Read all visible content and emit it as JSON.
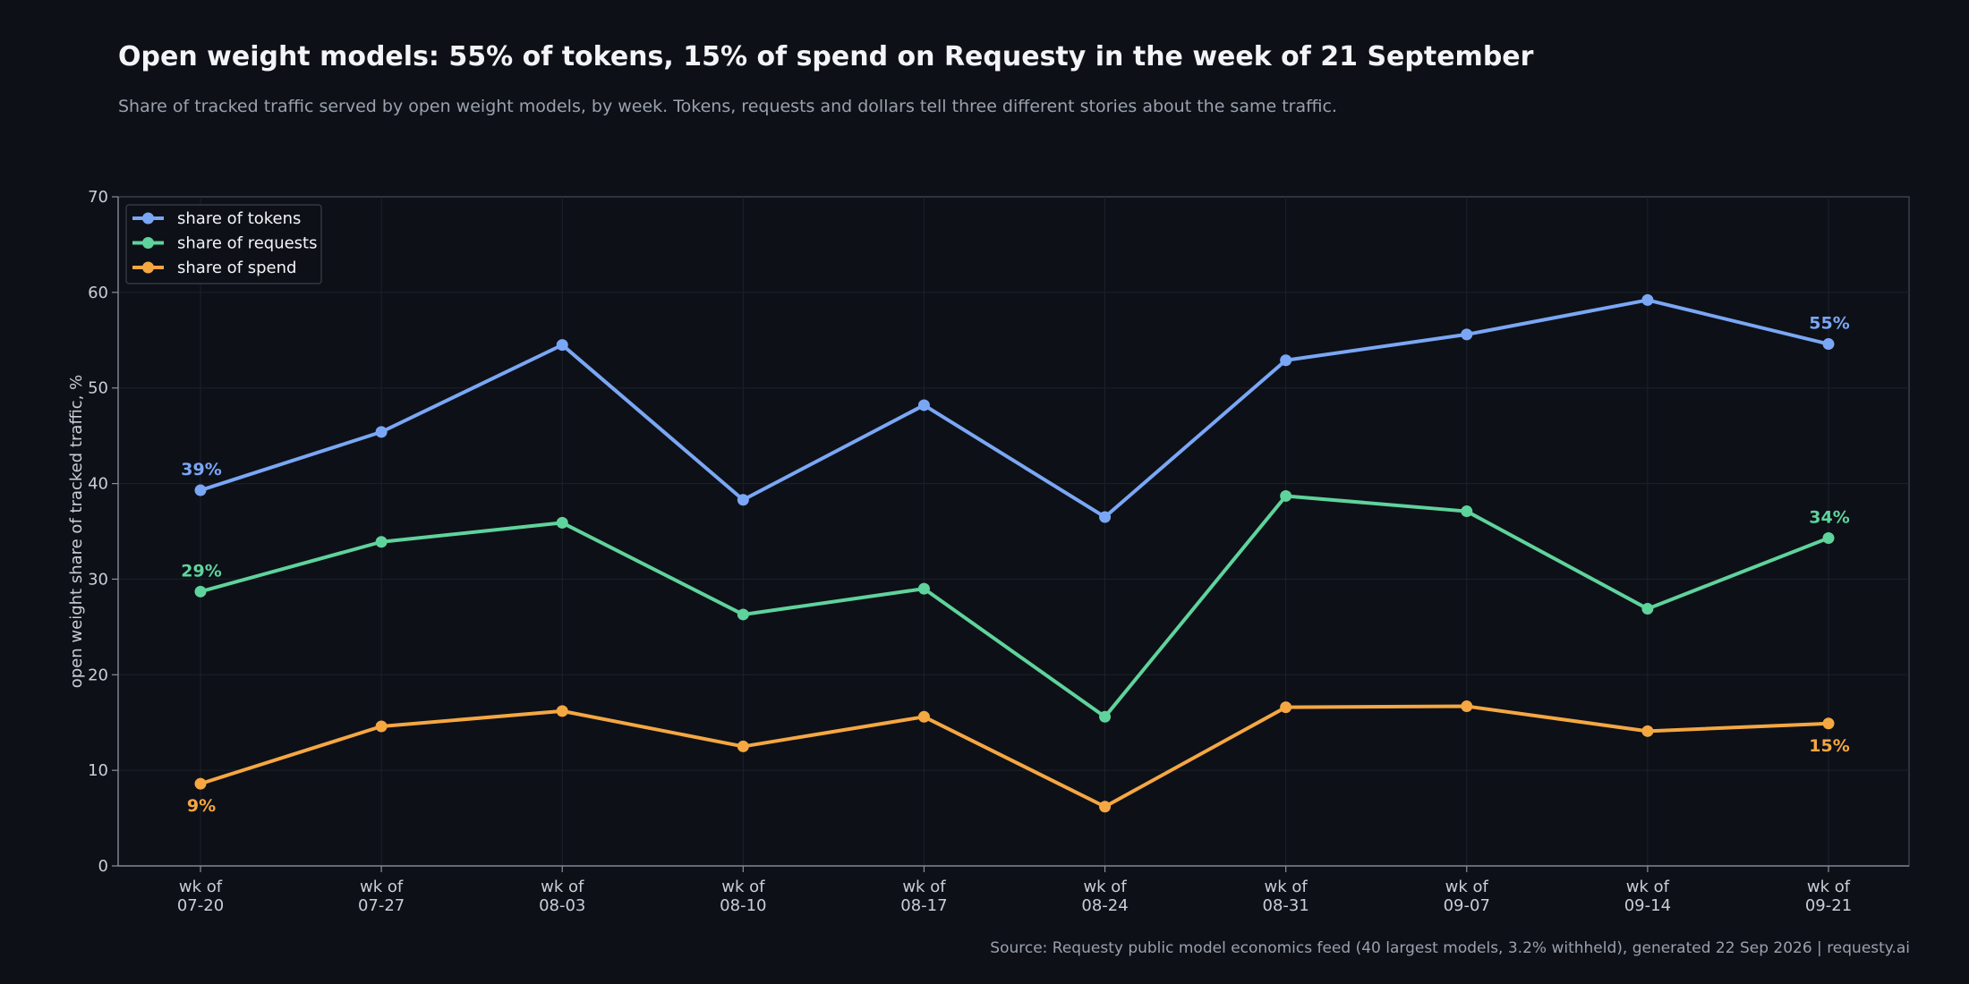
{
  "header": {
    "title": "Open weight models: 55% of tokens, 15% of spend on Requesty in the week of 21 September",
    "subtitle": "Share of tracked traffic served by open weight models, by week. Tokens, requests and dollars tell three different stories about the same traffic."
  },
  "footer": {
    "source": "Source: Requesty public model economics feed (40 largest models, 3.2% withheld), generated 22 Sep 2026  |  requesty.ai"
  },
  "colors": {
    "background": "#0d1017",
    "grid": "#1c212b",
    "axis": "#3a404c"
  },
  "chart_data": {
    "type": "line",
    "title": "Open weight models: 55% of tokens, 15% of spend on Requesty in the week of 21 September",
    "xlabel": "",
    "ylabel": "open weight share of tracked traffic, %",
    "ylim": [
      0,
      70
    ],
    "yticks": [
      0,
      10,
      20,
      30,
      40,
      50,
      60,
      70
    ],
    "grid": true,
    "legend_position": "top-left",
    "categories": [
      [
        "wk of",
        "07-20"
      ],
      [
        "wk of",
        "07-27"
      ],
      [
        "wk of",
        "08-03"
      ],
      [
        "wk of",
        "08-10"
      ],
      [
        "wk of",
        "08-17"
      ],
      [
        "wk of",
        "08-24"
      ],
      [
        "wk of",
        "08-31"
      ],
      [
        "wk of",
        "09-07"
      ],
      [
        "wk of",
        "09-14"
      ],
      [
        "wk of",
        "09-21"
      ]
    ],
    "series": [
      {
        "name": "share of tokens",
        "color": "#7aa7f5",
        "values": [
          39.3,
          45.4,
          54.5,
          38.3,
          48.2,
          36.5,
          52.9,
          55.6,
          59.2,
          54.6
        ],
        "labels": [
          {
            "index": 0,
            "text": "39%",
            "position": "above"
          },
          {
            "index": 9,
            "text": "55%",
            "position": "above"
          }
        ]
      },
      {
        "name": "share of requests",
        "color": "#5fd39c",
        "values": [
          28.7,
          33.9,
          35.9,
          26.3,
          29.0,
          15.6,
          38.7,
          37.1,
          26.9,
          34.3
        ],
        "labels": [
          {
            "index": 0,
            "text": "29%",
            "position": "above"
          },
          {
            "index": 9,
            "text": "34%",
            "position": "above"
          }
        ]
      },
      {
        "name": "share of spend",
        "color": "#f5a742",
        "values": [
          8.6,
          14.6,
          16.2,
          12.5,
          15.6,
          6.2,
          16.6,
          16.7,
          14.1,
          14.9
        ],
        "labels": [
          {
            "index": 0,
            "text": "9%",
            "position": "below"
          },
          {
            "index": 9,
            "text": "15%",
            "position": "below"
          }
        ]
      }
    ]
  }
}
